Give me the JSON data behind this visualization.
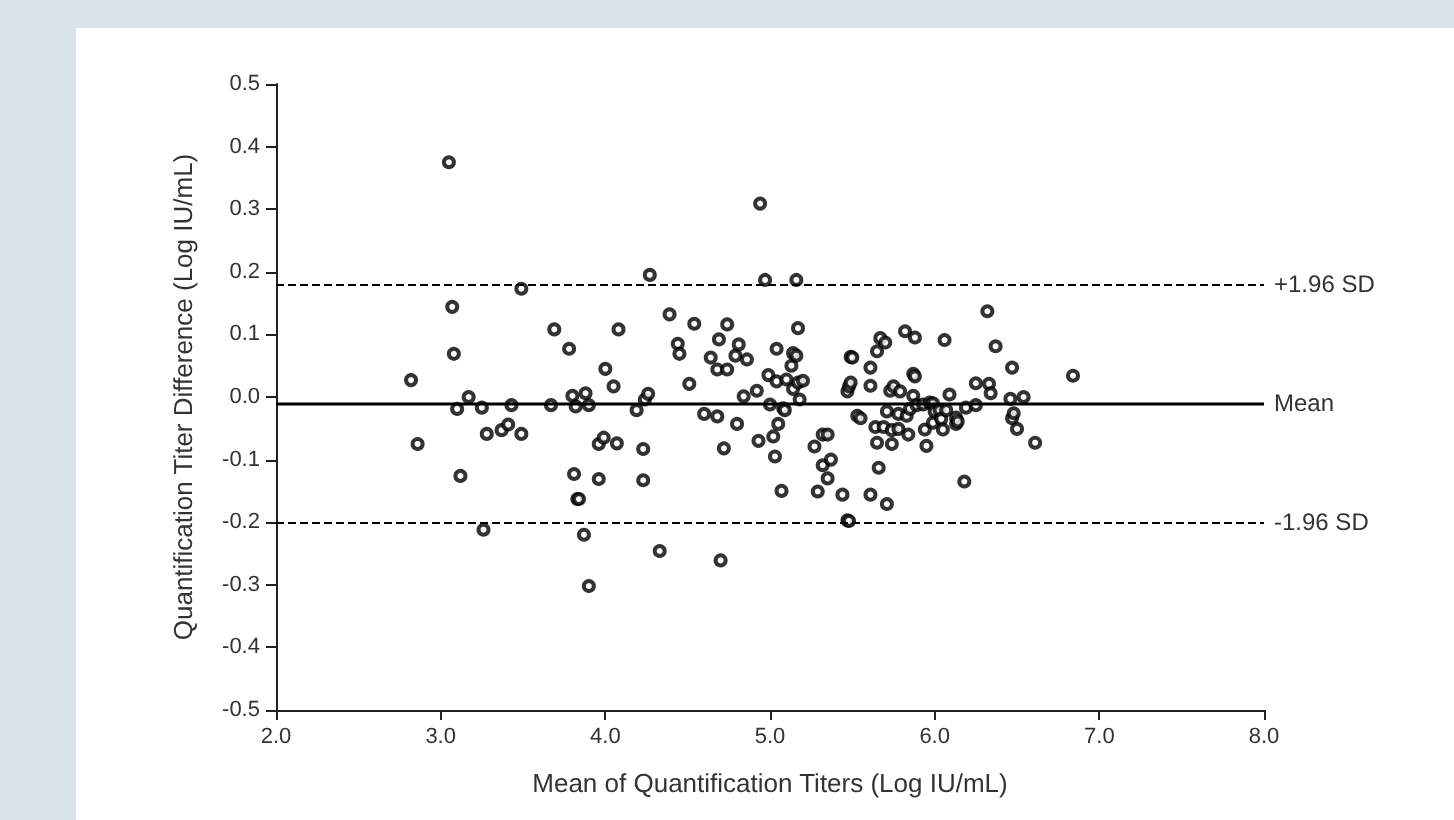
{
  "chart_data": {
    "type": "scatter",
    "xlabel": "Mean of Quantification Titers (Log IU/mL)",
    "ylabel": "Quantification Titer Difference (Log IU/mL)",
    "x": [
      2.82,
      2.86,
      3.05,
      3.07,
      3.08,
      3.1,
      3.12,
      3.17,
      3.25,
      3.26,
      3.28,
      3.37,
      3.41,
      3.43,
      3.49,
      3.49,
      3.67,
      3.69,
      3.78,
      3.8,
      3.81,
      3.82,
      3.83,
      3.84,
      3.87,
      3.88,
      3.9,
      3.9,
      3.96,
      3.96,
      3.99,
      4.0,
      4.05,
      4.07,
      4.08,
      4.19,
      4.23,
      4.23,
      4.24,
      4.26,
      4.27,
      4.33,
      4.39,
      4.44,
      4.45,
      4.51,
      4.54,
      4.6,
      4.64,
      4.68,
      4.68,
      4.69,
      4.7,
      4.72,
      4.74,
      4.74,
      4.79,
      4.8,
      4.81,
      4.84,
      4.86,
      4.92,
      4.93,
      4.94,
      4.97,
      4.99,
      5.0,
      5.02,
      5.03,
      5.04,
      5.04,
      5.05,
      5.07,
      5.08,
      5.09,
      5.1,
      5.13,
      5.14,
      5.14,
      5.16,
      5.16,
      5.17,
      5.17,
      5.18,
      5.2,
      5.27,
      5.29,
      5.32,
      5.32,
      5.35,
      5.35,
      5.37,
      5.44,
      5.47,
      5.47,
      5.49,
      5.48,
      5.48,
      5.49,
      5.5,
      5.53,
      5.55,
      5.61,
      5.61,
      5.61,
      5.64,
      5.65,
      5.65,
      5.66,
      5.67,
      5.69,
      5.7,
      5.71,
      5.71,
      5.73,
      5.74,
      5.74,
      5.75,
      5.78,
      5.78,
      5.79,
      5.82,
      5.83,
      5.84,
      5.85,
      5.87,
      5.87,
      5.88,
      5.88,
      5.89,
      5.93,
      5.94,
      5.95,
      5.97,
      5.99,
      5.99,
      6.0,
      6.03,
      6.04,
      6.05,
      6.06,
      6.07,
      6.09,
      6.13,
      6.13,
      6.14,
      6.18,
      6.19,
      6.25,
      6.25,
      6.32,
      6.33,
      6.34,
      6.37,
      6.46,
      6.47,
      6.47,
      6.48,
      6.5,
      6.54,
      6.61,
      6.84
    ],
    "values": [
      0.027,
      -0.075,
      0.375,
      0.144,
      0.069,
      -0.019,
      -0.126,
      0.0,
      -0.017,
      -0.212,
      -0.059,
      -0.053,
      -0.044,
      -0.013,
      0.173,
      -0.059,
      -0.013,
      0.108,
      0.077,
      0.002,
      -0.123,
      -0.015,
      -0.163,
      -0.163,
      -0.22,
      0.006,
      -0.013,
      -0.302,
      -0.075,
      -0.131,
      -0.065,
      0.045,
      0.017,
      -0.074,
      0.108,
      -0.021,
      -0.083,
      -0.133,
      -0.004,
      0.005,
      0.195,
      -0.246,
      0.132,
      0.085,
      0.069,
      0.021,
      0.117,
      -0.027,
      0.063,
      -0.031,
      0.044,
      0.092,
      -0.261,
      -0.082,
      0.044,
      0.116,
      0.066,
      -0.043,
      0.084,
      0.001,
      0.06,
      0.01,
      -0.07,
      0.309,
      0.187,
      0.035,
      -0.012,
      -0.063,
      -0.095,
      0.077,
      0.025,
      -0.043,
      -0.15,
      -0.018,
      -0.021,
      0.028,
      0.05,
      0.07,
      0.013,
      0.066,
      0.187,
      0.11,
      0.023,
      -0.004,
      0.026,
      -0.079,
      -0.151,
      -0.06,
      -0.109,
      -0.13,
      -0.06,
      -0.1,
      -0.156,
      -0.197,
      0.009,
      0.064,
      -0.198,
      0.017,
      0.023,
      0.063,
      -0.03,
      -0.034,
      -0.156,
      0.018,
      0.047,
      -0.048,
      -0.073,
      0.073,
      -0.113,
      0.094,
      -0.048,
      0.087,
      -0.023,
      -0.171,
      0.01,
      -0.053,
      -0.075,
      0.017,
      -0.027,
      -0.051,
      0.009,
      0.105,
      -0.03,
      -0.06,
      -0.019,
      0.002,
      0.037,
      0.033,
      0.095,
      -0.013,
      -0.012,
      -0.052,
      -0.078,
      -0.009,
      -0.041,
      -0.01,
      -0.023,
      -0.021,
      -0.035,
      -0.052,
      0.091,
      -0.021,
      0.004,
      -0.043,
      -0.033,
      -0.039,
      -0.135,
      -0.017,
      0.022,
      -0.013,
      0.137,
      0.021,
      0.006,
      0.081,
      -0.003,
      0.047,
      -0.034,
      -0.026,
      -0.051,
      0.0,
      -0.073,
      0.034
    ],
    "color": "#000000",
    "marker": "circle",
    "xlim": [
      2,
      8
    ],
    "xticks": [
      {
        "value": 2,
        "label": "2.0"
      },
      {
        "value": 3,
        "label": "3.0"
      },
      {
        "value": 4,
        "label": "4.0"
      },
      {
        "value": 5,
        "label": "5.0"
      },
      {
        "value": 6,
        "label": "6.0"
      },
      {
        "value": 7,
        "label": "7.0"
      },
      {
        "value": 8,
        "label": "8.0"
      }
    ],
    "ylim": [
      -0.5,
      0.5
    ],
    "yticks": [
      {
        "value": -0.5,
        "label": "-0.5"
      },
      {
        "value": -0.4,
        "label": "-0.4"
      },
      {
        "value": -0.3,
        "label": "-0.3"
      },
      {
        "value": -0.2,
        "label": "-0.2"
      },
      {
        "value": -0.1,
        "label": "-0.1"
      },
      {
        "value": 0,
        "label": "0.0"
      },
      0.1,
      0.2,
      0.3,
      0.4,
      0.5
    ],
    "ref_lines": [
      {
        "axis": "y",
        "value": 0.178,
        "label": "+1.96 SD",
        "line_style": "dashed",
        "color": "#000000"
      },
      {
        "axis": "y",
        "value": -0.011,
        "label": "Mean",
        "line_style": "solid",
        "color": "#000000"
      },
      {
        "axis": "y",
        "value": -0.198,
        "label": "-1.96 SD",
        "line_style": "dashed",
        "color": "#000000"
      }
    ]
  }
}
